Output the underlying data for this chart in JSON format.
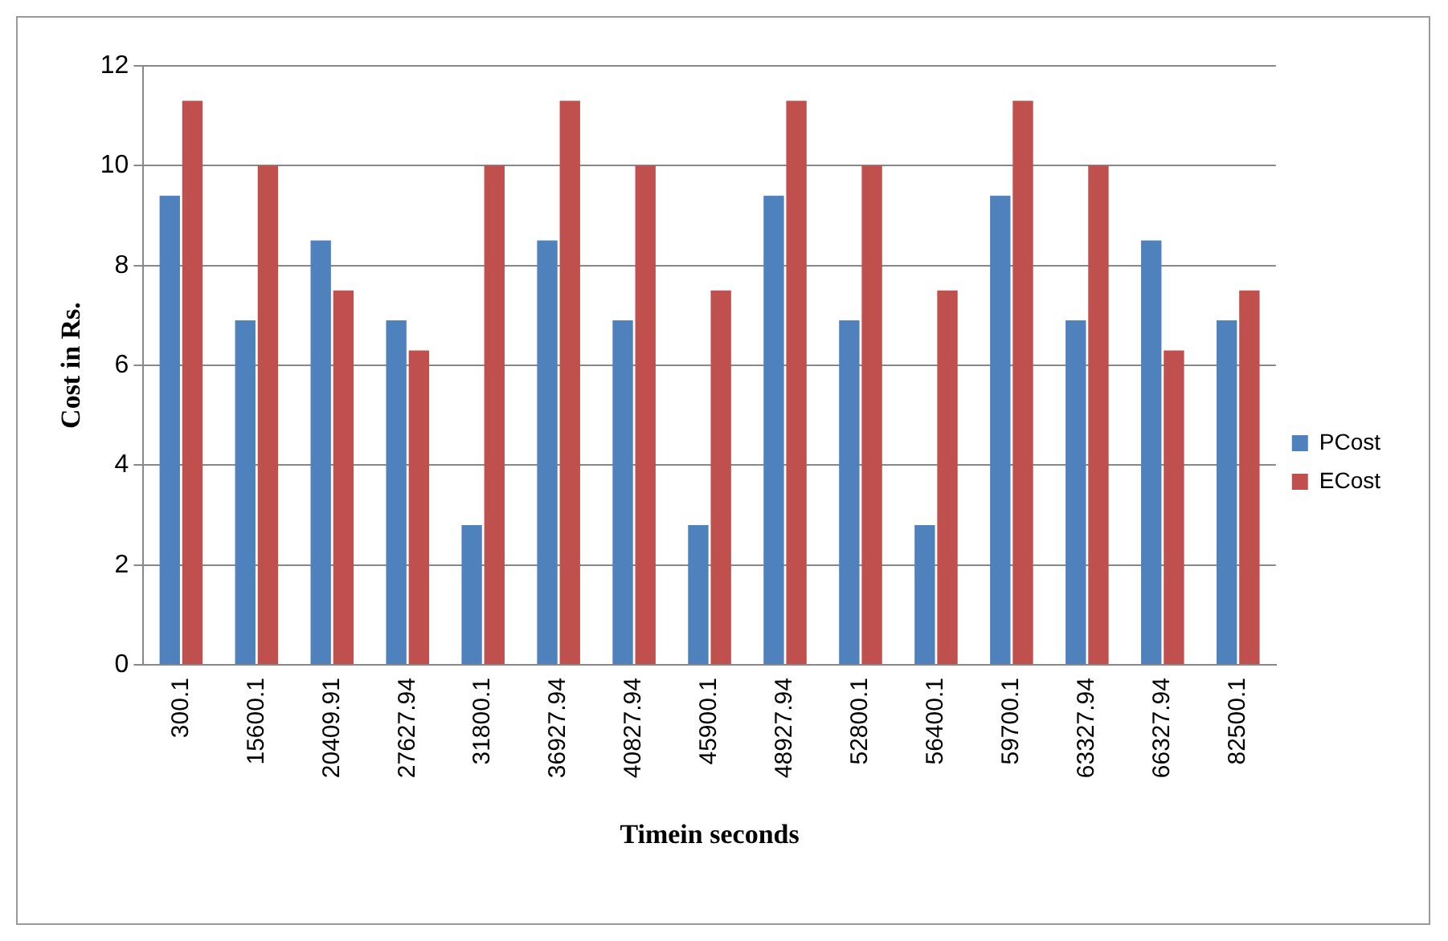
{
  "chart_data": {
    "type": "bar",
    "xlabel": "Timein seconds",
    "ylabel": "Cost in Rs.",
    "categories": [
      "300.1",
      "15600.1",
      "20409.91",
      "27627.94",
      "31800.1",
      "36927.94",
      "40827.94",
      "45900.1",
      "48927.94",
      "52800.1",
      "56400.1",
      "59700.1",
      "63327.94",
      "66327.94",
      "82500.1"
    ],
    "series": [
      {
        "name": "PCost",
        "color": "#4f81bd",
        "values": [
          9.4,
          6.9,
          8.5,
          6.9,
          2.8,
          8.5,
          6.9,
          2.8,
          9.4,
          6.9,
          2.8,
          9.4,
          6.9,
          8.5,
          6.9
        ]
      },
      {
        "name": "ECost",
        "color": "#c0504d",
        "values": [
          11.3,
          10,
          7.5,
          6.3,
          10,
          11.3,
          10,
          7.5,
          11.3,
          10,
          7.5,
          11.3,
          10,
          6.3,
          7.5
        ]
      }
    ],
    "ylim": [
      0,
      12
    ],
    "yticks": [
      0,
      2,
      4,
      6,
      8,
      10,
      12
    ],
    "grid": "y",
    "legend": "right"
  }
}
